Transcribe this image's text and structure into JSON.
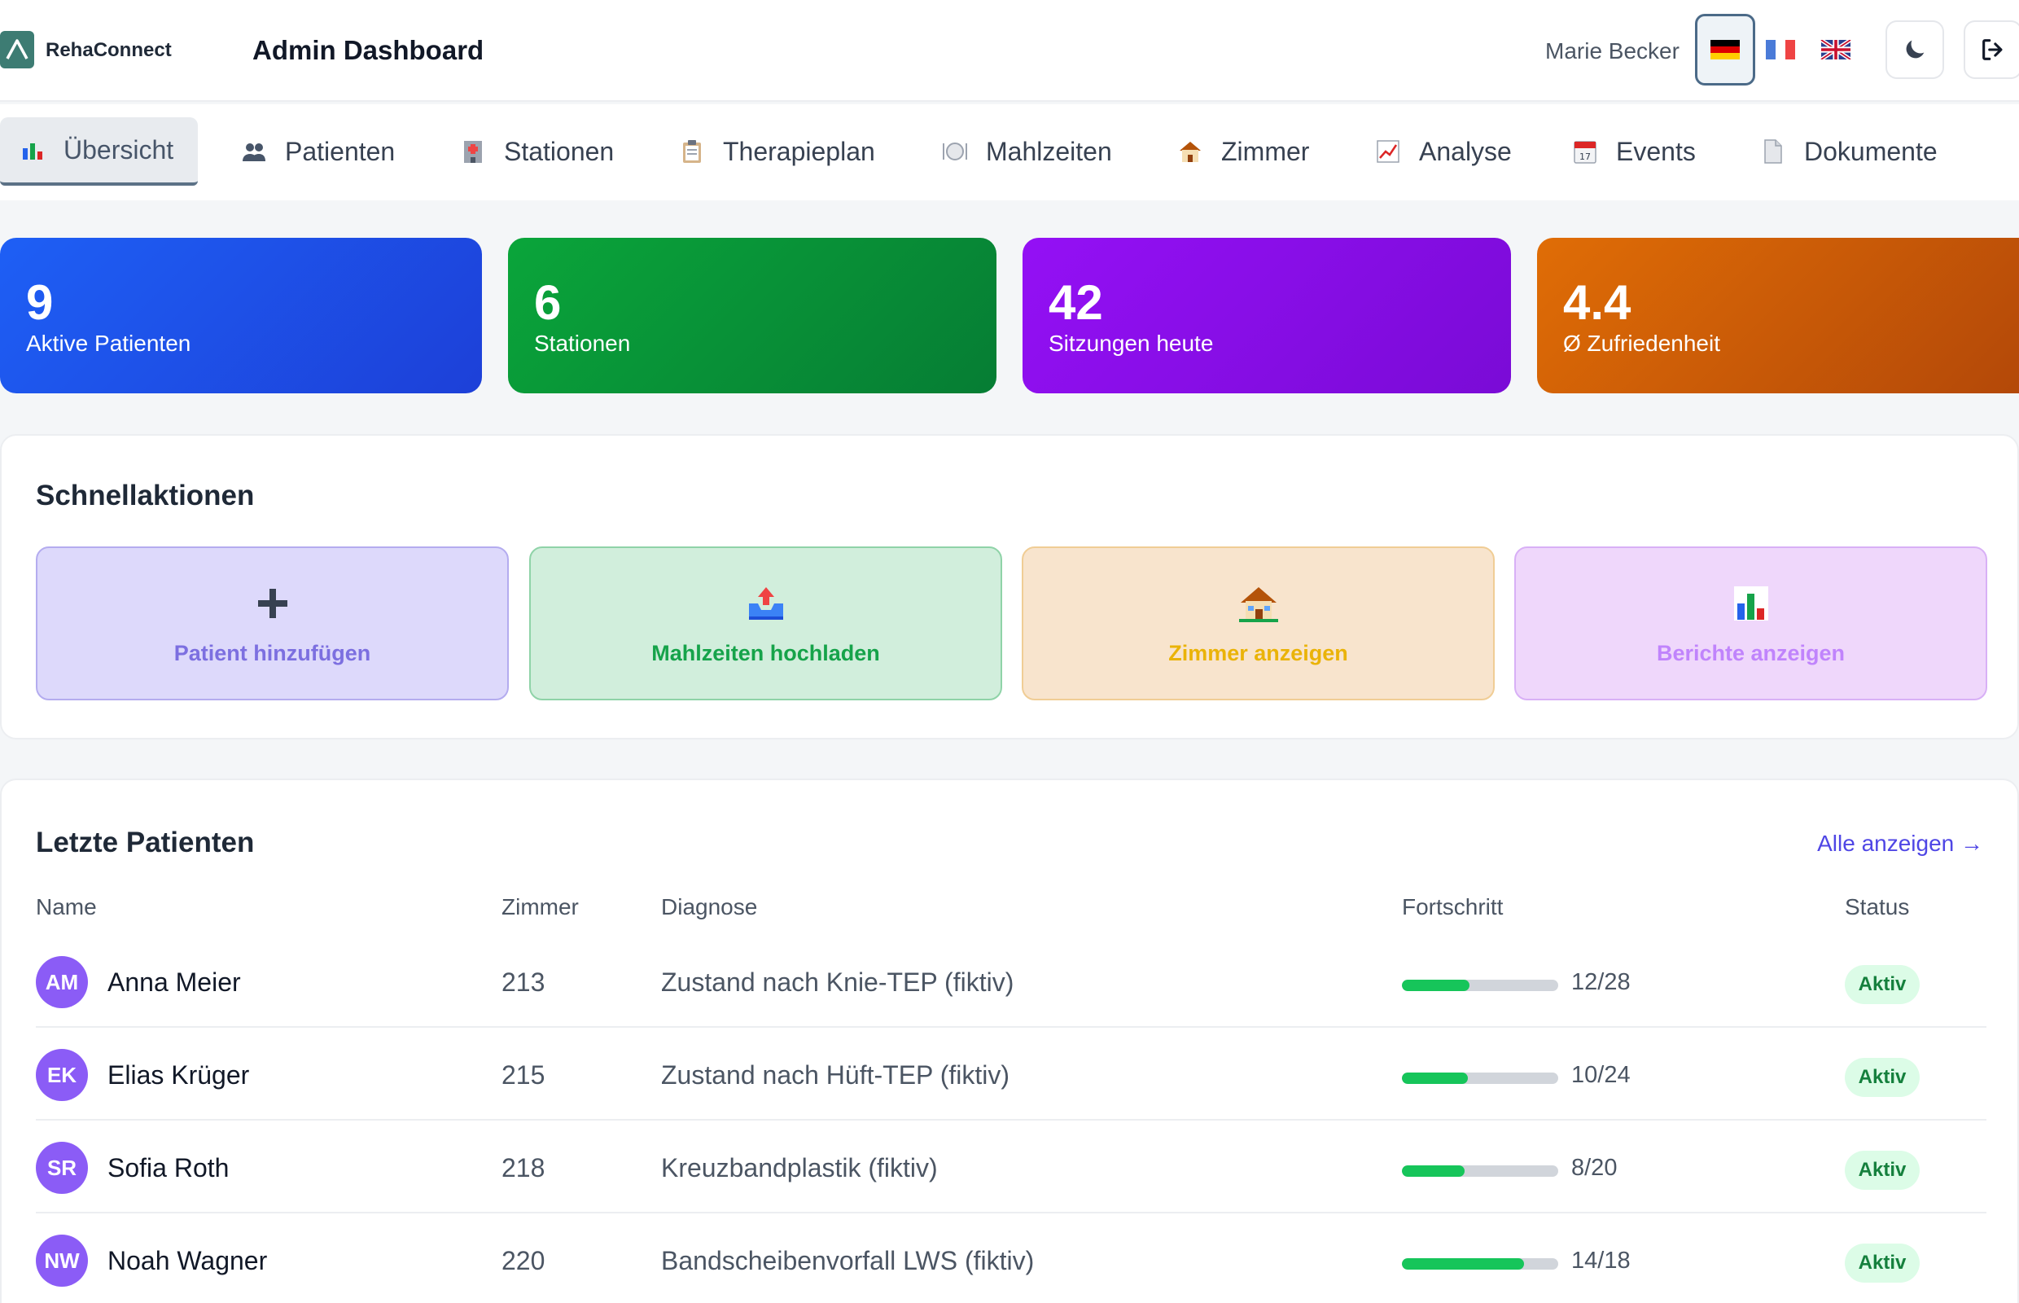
{
  "header": {
    "brand": "RehaConnect",
    "title": "Admin Dashboard",
    "user": "Marie Becker",
    "languages": [
      "de",
      "fr",
      "en"
    ],
    "active_language": "de"
  },
  "tabs": [
    {
      "label": "Übersicht",
      "icon": "bar-chart-icon",
      "active": true
    },
    {
      "label": "Patienten",
      "icon": "users-icon"
    },
    {
      "label": "Stationen",
      "icon": "hospital-icon"
    },
    {
      "label": "Therapieplan",
      "icon": "clipboard-icon"
    },
    {
      "label": "Mahlzeiten",
      "icon": "plate-icon"
    },
    {
      "label": "Zimmer",
      "icon": "house-icon"
    },
    {
      "label": "Analyse",
      "icon": "trend-chart-icon"
    },
    {
      "label": "Events",
      "icon": "calendar-icon"
    },
    {
      "label": "Dokumente",
      "icon": "document-icon"
    }
  ],
  "stats": [
    {
      "value": "9",
      "label": "Aktive Patienten",
      "color": "#1d4ed8"
    },
    {
      "value": "6",
      "label": "Stationen",
      "color": "#0a9a3a"
    },
    {
      "value": "42",
      "label": "Sitzungen heute",
      "color": "#8b0cf0"
    },
    {
      "value": "4.4",
      "label": "Ø Zufriedenheit",
      "color": "#d2620a"
    }
  ],
  "quick_actions": {
    "title": "Schnellaktionen",
    "items": [
      {
        "icon": "+",
        "label": "Patient hinzufügen",
        "color": "#7c6fe0"
      },
      {
        "icon": "📤",
        "label": "Mahlzeiten hochladen",
        "color": "#16a34a"
      },
      {
        "icon": "🏠",
        "label": "Zimmer anzeigen",
        "color": "#eab308"
      },
      {
        "icon": "📊",
        "label": "Berichte anzeigen",
        "color": "#c084fc"
      }
    ]
  },
  "patients": {
    "title": "Letzte Patienten",
    "show_all": "Alle anzeigen →",
    "columns": [
      "Name",
      "Zimmer",
      "Diagnose",
      "Fortschritt",
      "Status"
    ],
    "rows": [
      {
        "initials": "AM",
        "name": "Anna Meier",
        "room": "213",
        "diagnosis": "Zustand nach Knie-TEP (fiktiv)",
        "progress": "12/28",
        "progress_fraction": 0.43,
        "status": "Aktiv"
      },
      {
        "initials": "EK",
        "name": "Elias Krüger",
        "room": "215",
        "diagnosis": "Zustand nach Hüft-TEP (fiktiv)",
        "progress": "10/24",
        "progress_fraction": 0.42,
        "status": "Aktiv"
      },
      {
        "initials": "SR",
        "name": "Sofia Roth",
        "room": "218",
        "diagnosis": "Kreuzbandplastik (fiktiv)",
        "progress": "8/20",
        "progress_fraction": 0.4,
        "status": "Aktiv"
      },
      {
        "initials": "NW",
        "name": "Noah Wagner",
        "room": "220",
        "diagnosis": "Bandscheibenvorfall LWS (fiktiv)",
        "progress": "14/18",
        "progress_fraction": 0.78,
        "status": "Aktiv"
      }
    ]
  }
}
